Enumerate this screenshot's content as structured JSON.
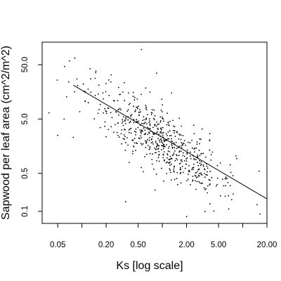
{
  "chart_data": {
    "type": "scatter",
    "title": "",
    "xlabel": "Ks [log scale]",
    "ylabel": "Sapwood per leaf area (cm^2/m^2)",
    "x_scale": "log",
    "y_scale": "log",
    "xlim": [
      0.032,
      20
    ],
    "ylim": [
      0.06,
      130
    ],
    "x_ticks": [
      {
        "value": 0.05,
        "label": "0.05"
      },
      {
        "value": 0.1,
        "label": ""
      },
      {
        "value": 0.2,
        "label": "0.20"
      },
      {
        "value": 0.5,
        "label": "0.50"
      },
      {
        "value": 1.0,
        "label": ""
      },
      {
        "value": 2.0,
        "label": "2.00"
      },
      {
        "value": 5.0,
        "label": "5.00"
      },
      {
        "value": 10.0,
        "label": ""
      },
      {
        "value": 20.0,
        "label": "20.00"
      }
    ],
    "y_ticks": [
      {
        "value": 0.1,
        "label": "0.1"
      },
      {
        "value": 0.5,
        "label": "0.5"
      },
      {
        "value": 5.0,
        "label": "5.0"
      },
      {
        "value": 50.0,
        "label": "50.0"
      }
    ],
    "grid": false,
    "legend": "none",
    "regression_line": {
      "x": [
        0.078,
        20
      ],
      "y": [
        21,
        0.17
      ]
    },
    "point_cloud": {
      "n": 620,
      "log10_x_mean": 0.0,
      "log10_x_sd": 0.45,
      "log10_x_range": [
        -1.36,
        1.25
      ],
      "log10_y_intercept": 0.3,
      "log10_y_slope": -0.86,
      "log10_y_residual_sd": 0.3,
      "log10_y_range": [
        -1.15,
        2.0
      ]
    },
    "outliers": [
      {
        "x": 0.039,
        "y": 6.5
      },
      {
        "x": 0.05,
        "y": 2.5
      },
      {
        "x": 0.06,
        "y": 5.0
      },
      {
        "x": 0.078,
        "y": 2.3
      },
      {
        "x": 0.55,
        "y": 95
      },
      {
        "x": 0.85,
        "y": 35
      },
      {
        "x": 1.3,
        "y": 15
      },
      {
        "x": 2.0,
        "y": 0.08
      },
      {
        "x": 16.0,
        "y": 0.55
      },
      {
        "x": 0.11,
        "y": 16
      },
      {
        "x": 0.12,
        "y": 10
      },
      {
        "x": 0.35,
        "y": 0.15
      }
    ]
  }
}
